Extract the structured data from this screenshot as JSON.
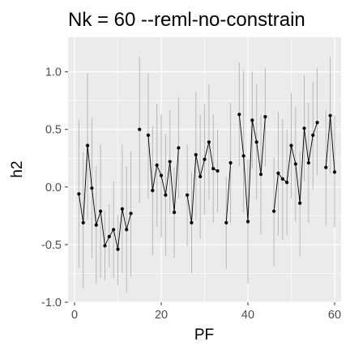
{
  "chart_data": {
    "type": "line",
    "title": "Nk = 60 --reml-no-constrain",
    "xlabel": "PF",
    "ylabel": "h2",
    "xlim": [
      -1.5,
      61.5
    ],
    "ylim": [
      -1.0,
      1.3
    ],
    "x_ticks": [
      0,
      20,
      40,
      60
    ],
    "y_ticks": [
      -1.0,
      -0.5,
      0.0,
      0.5,
      1.0
    ],
    "x_tick_labels": [
      "0",
      "20",
      "40",
      "60"
    ],
    "y_tick_labels": [
      "-1.0",
      "-0.5",
      "0.0",
      "0.5",
      "1.0"
    ],
    "grid": true,
    "colors": {
      "panel": "#ebebeb",
      "grid": "#ffffff",
      "line": "#000000",
      "errorbar": "#b3b3b3",
      "point": "#000000"
    },
    "series": [
      {
        "points": [
          {
            "x": 1,
            "y": -0.06,
            "lo": -0.7,
            "hi": 0.58
          },
          {
            "x": 2,
            "y": -0.31,
            "lo": -0.88,
            "hi": 0.3
          },
          {
            "x": 3,
            "y": 0.36,
            "lo": -0.28,
            "hi": 0.99
          },
          {
            "x": 4,
            "y": -0.01,
            "lo": -0.62,
            "hi": 0.6
          },
          {
            "x": 5,
            "y": -0.33,
            "lo": -0.84,
            "hi": 0.18
          },
          {
            "x": 6,
            "y": -0.21,
            "lo": -0.79,
            "hi": 0.37
          },
          {
            "x": 7,
            "y": -0.51,
            "lo": -0.81,
            "hi": -0.21
          },
          {
            "x": 8,
            "y": -0.43,
            "lo": -0.7,
            "hi": -0.15
          },
          {
            "x": 9,
            "y": -0.37,
            "lo": -0.79,
            "hi": 0.05
          },
          {
            "x": 10,
            "y": -0.54,
            "lo": -0.85,
            "hi": -0.24
          },
          {
            "x": 11,
            "y": -0.19,
            "lo": -0.75,
            "hi": 0.37
          },
          {
            "x": 12,
            "y": -0.37,
            "lo": -0.92,
            "hi": 0.18
          },
          {
            "x": 13,
            "y": -0.23,
            "lo": -0.78,
            "hi": 0.31
          },
          {
            "x": 15,
            "y": 0.5,
            "lo": -0.14,
            "hi": 1.13
          },
          {
            "x": 17,
            "y": 0.45,
            "lo": -0.1,
            "hi": 0.99
          },
          {
            "x": 18,
            "y": -0.03,
            "lo": -0.59,
            "hi": 0.53
          },
          {
            "x": 19,
            "y": 0.19,
            "lo": -0.35,
            "hi": 0.72
          },
          {
            "x": 20,
            "y": 0.1,
            "lo": -0.44,
            "hi": 0.63
          },
          {
            "x": 21,
            "y": -0.07,
            "lo": -0.6,
            "hi": 0.46
          },
          {
            "x": 22,
            "y": 0.22,
            "lo": -0.23,
            "hi": 0.67
          },
          {
            "x": 23,
            "y": -0.22,
            "lo": -0.62,
            "hi": 0.17
          },
          {
            "x": 24,
            "y": 0.34,
            "lo": -0.1,
            "hi": 0.78
          },
          {
            "x": 26,
            "y": -0.07,
            "lo": -0.51,
            "hi": 0.37
          },
          {
            "x": 27,
            "y": -0.31,
            "lo": -0.75,
            "hi": 0.13
          },
          {
            "x": 28,
            "y": 0.28,
            "lo": -0.28,
            "hi": 0.83
          },
          {
            "x": 29,
            "y": 0.09,
            "lo": -0.45,
            "hi": 0.63
          },
          {
            "x": 30,
            "y": 0.24,
            "lo": -0.24,
            "hi": 0.72
          },
          {
            "x": 31,
            "y": 0.39,
            "lo": -0.11,
            "hi": 0.89
          },
          {
            "x": 32,
            "y": 0.16,
            "lo": -0.31,
            "hi": 0.63
          },
          {
            "x": 33,
            "y": 0.14,
            "lo": -0.22,
            "hi": 0.5
          },
          {
            "x": 35,
            "y": -0.31,
            "lo": -0.71,
            "hi": 0.09
          },
          {
            "x": 36,
            "y": 0.21,
            "lo": -0.31,
            "hi": 0.73
          },
          {
            "x": 38,
            "y": 0.63,
            "lo": 0.18,
            "hi": 1.08
          },
          {
            "x": 39,
            "y": 0.27,
            "lo": -0.22,
            "hi": 1.01
          },
          {
            "x": 40,
            "y": -0.3,
            "lo": -0.84,
            "hi": 0.24
          },
          {
            "x": 41,
            "y": 0.58,
            "lo": 0.16,
            "hi": 1.0
          },
          {
            "x": 42,
            "y": 0.39,
            "lo": -0.11,
            "hi": 0.89
          },
          {
            "x": 43,
            "y": 0.11,
            "lo": -0.41,
            "hi": 0.63
          },
          {
            "x": 44,
            "y": 0.61,
            "lo": 0.18,
            "hi": 1.03
          },
          {
            "x": 46,
            "y": -0.21,
            "lo": -0.69,
            "hi": 0.26
          },
          {
            "x": 47,
            "y": 0.12,
            "lo": -0.42,
            "hi": 0.65
          },
          {
            "x": 48,
            "y": 0.07,
            "lo": -0.46,
            "hi": 0.59
          },
          {
            "x": 49,
            "y": 0.04,
            "lo": -0.42,
            "hi": 0.5
          },
          {
            "x": 50,
            "y": 0.36,
            "lo": -0.1,
            "hi": 0.82
          },
          {
            "x": 51,
            "y": 0.2,
            "lo": -0.3,
            "hi": 0.7
          },
          {
            "x": 52,
            "y": -0.14,
            "lo": -0.6,
            "hi": 0.31
          },
          {
            "x": 53,
            "y": 0.51,
            "lo": 0.05,
            "hi": 0.97
          },
          {
            "x": 54,
            "y": 0.21,
            "lo": -0.31,
            "hi": 0.73
          },
          {
            "x": 55,
            "y": 0.45,
            "lo": -0.02,
            "hi": 0.91
          },
          {
            "x": 56,
            "y": 0.56,
            "lo": 0.1,
            "hi": 1.03
          },
          {
            "x": 58,
            "y": 0.17,
            "lo": -0.34,
            "hi": 0.67
          },
          {
            "x": 59,
            "y": 0.62,
            "lo": 0.12,
            "hi": 1.13
          },
          {
            "x": 60,
            "y": 0.13,
            "lo": -0.35,
            "hi": 0.62
          }
        ]
      }
    ]
  }
}
